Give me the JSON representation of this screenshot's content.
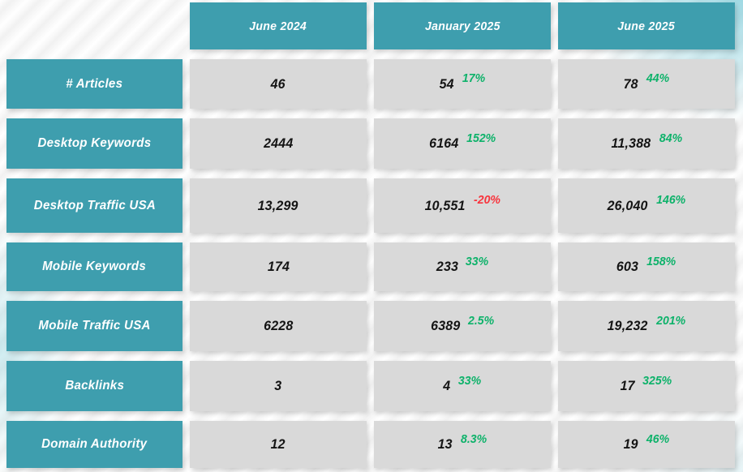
{
  "colors": {
    "teal": "#3E9EAE",
    "cell_gray": "#D9D9D9",
    "positive_green": "#0DB26A",
    "negative_red": "#F8333C",
    "value_text": "#141414",
    "header_text": "#FFFFFF"
  },
  "table": {
    "column_headers": [
      "June 2024",
      "January 2025",
      "June 2025"
    ],
    "rows": [
      {
        "label": "# Articles",
        "cells": [
          {
            "value": "46",
            "delta": "",
            "trend": ""
          },
          {
            "value": "54",
            "delta": "17%",
            "trend": "positive"
          },
          {
            "value": "78",
            "delta": "44%",
            "trend": "positive"
          }
        ]
      },
      {
        "label": "Desktop Keywords",
        "cells": [
          {
            "value": "2444",
            "delta": "",
            "trend": ""
          },
          {
            "value": "6164",
            "delta": "152%",
            "trend": "positive"
          },
          {
            "value": "11,388",
            "delta": "84%",
            "trend": "positive"
          }
        ]
      },
      {
        "label": "Desktop Traffic USA",
        "cells": [
          {
            "value": "13,299",
            "delta": "",
            "trend": ""
          },
          {
            "value": "10,551",
            "delta": "-20%",
            "trend": "negative"
          },
          {
            "value": "26,040",
            "delta": "146%",
            "trend": "positive"
          }
        ]
      },
      {
        "label": "Mobile Keywords",
        "cells": [
          {
            "value": "174",
            "delta": "",
            "trend": ""
          },
          {
            "value": "233",
            "delta": "33%",
            "trend": "positive"
          },
          {
            "value": "603",
            "delta": "158%",
            "trend": "positive"
          }
        ]
      },
      {
        "label": "Mobile Traffic USA",
        "cells": [
          {
            "value": "6228",
            "delta": "",
            "trend": ""
          },
          {
            "value": "6389",
            "delta": "2.5%",
            "trend": "positive"
          },
          {
            "value": "19,232",
            "delta": "201%",
            "trend": "positive"
          }
        ]
      },
      {
        "label": "Backlinks",
        "cells": [
          {
            "value": "3",
            "delta": "",
            "trend": ""
          },
          {
            "value": "4",
            "delta": "33%",
            "trend": "positive"
          },
          {
            "value": "17",
            "delta": "325%",
            "trend": "positive"
          }
        ]
      },
      {
        "label": "Domain Authority",
        "cells": [
          {
            "value": "12",
            "delta": "",
            "trend": ""
          },
          {
            "value": "13",
            "delta": "8.3%",
            "trend": "positive"
          },
          {
            "value": "19",
            "delta": "46%",
            "trend": "positive"
          }
        ]
      }
    ]
  },
  "chart_data": {
    "type": "table",
    "title": "",
    "columns": [
      "June 2024",
      "January 2025",
      "June 2025"
    ],
    "rows": [
      {
        "label": "# Articles",
        "values": [
          46,
          54,
          78
        ],
        "deltas": [
          null,
          "17%",
          "44%"
        ]
      },
      {
        "label": "Desktop Keywords",
        "values": [
          2444,
          6164,
          11388
        ],
        "deltas": [
          null,
          "152%",
          "84%"
        ]
      },
      {
        "label": "Desktop Traffic USA",
        "values": [
          13299,
          10551,
          26040
        ],
        "deltas": [
          null,
          "-20%",
          "146%"
        ]
      },
      {
        "label": "Mobile Keywords",
        "values": [
          174,
          233,
          603
        ],
        "deltas": [
          null,
          "33%",
          "158%"
        ]
      },
      {
        "label": "Mobile Traffic USA",
        "values": [
          6228,
          6389,
          19232
        ],
        "deltas": [
          null,
          "2.5%",
          "201%"
        ]
      },
      {
        "label": "Backlinks",
        "values": [
          3,
          4,
          17
        ],
        "deltas": [
          null,
          "33%",
          "325%"
        ]
      },
      {
        "label": "Domain Authority",
        "values": [
          12,
          13,
          19
        ],
        "deltas": [
          null,
          "8.3%",
          "46%"
        ]
      }
    ],
    "delta_color_positive": "#0DB26A",
    "delta_color_negative": "#F8333C"
  }
}
